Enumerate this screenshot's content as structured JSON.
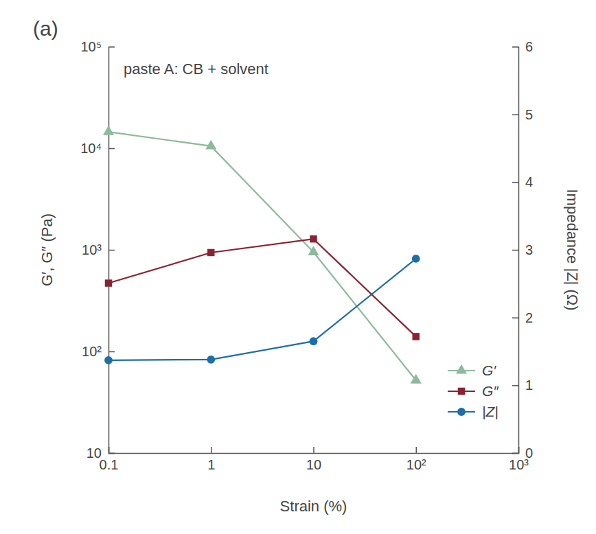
{
  "chart_data": {
    "type": "line",
    "title": "(a)",
    "annotations": [
      "paste A: CB + solvent"
    ],
    "xlabel": "Strain (%)",
    "ylabel": "G′, G″ (Pa)",
    "y2label": "Impedance |Z| (Ω)",
    "log": true,
    "grid": false,
    "legend": "lower right",
    "x": [
      0.1,
      1,
      10,
      100
    ],
    "xlim": [
      0.1,
      1000
    ],
    "xticks": [
      0.1,
      1,
      10,
      {
        "value": 100,
        "label": "10²"
      },
      {
        "value": 1000,
        "label": "10³"
      }
    ],
    "ylim": [
      10,
      100000
    ],
    "yticks": [
      10,
      {
        "value": 100,
        "label": "10²"
      },
      {
        "value": 1000,
        "label": "10³"
      },
      {
        "value": 10000,
        "label": "10⁴"
      },
      {
        "value": 100000,
        "label": "10⁵"
      }
    ],
    "y2lim": [
      0,
      6
    ],
    "y2ticks": [
      0,
      1,
      2,
      3,
      4,
      5,
      6
    ],
    "series": [
      {
        "name": "G′",
        "color": "#8cba9a",
        "marker": "triangle",
        "values": [
          14500,
          10500,
          950,
          52
        ]
      },
      {
        "name": "G″",
        "color": "#8b2232",
        "marker": "square",
        "values": [
          470,
          940,
          1280,
          140
        ]
      },
      {
        "name": "|Z|",
        "color": "#1b6ea6",
        "marker": "circle",
        "axis": "y2",
        "values": [
          1.37,
          1.38,
          1.65,
          2.87
        ]
      }
    ]
  }
}
